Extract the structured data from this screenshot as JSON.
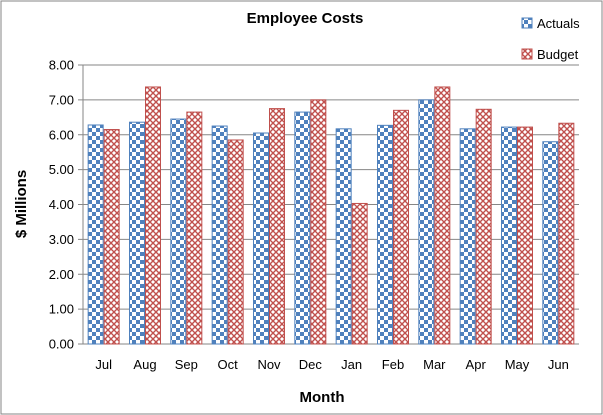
{
  "chart_data": {
    "type": "bar",
    "title": "Employee Costs",
    "xlabel": "Month",
    "ylabel": "$ Millions",
    "categories": [
      "Jul",
      "Aug",
      "Sep",
      "Oct",
      "Nov",
      "Dec",
      "Jan",
      "Feb",
      "Mar",
      "Apr",
      "May",
      "Jun"
    ],
    "series": [
      {
        "name": "Actuals",
        "values": [
          6.28,
          6.36,
          6.45,
          6.25,
          6.05,
          6.65,
          6.17,
          6.27,
          7.0,
          6.17,
          6.22,
          5.8
        ],
        "color": "#4f81bd"
      },
      {
        "name": "Budget",
        "values": [
          6.15,
          7.37,
          6.65,
          5.85,
          6.75,
          7.0,
          4.03,
          6.7,
          7.37,
          6.73,
          6.22,
          6.33
        ],
        "color": "#c0504d"
      }
    ],
    "ylim": [
      0,
      8
    ],
    "yticks": [
      "0.00",
      "1.00",
      "2.00",
      "3.00",
      "4.00",
      "5.00",
      "6.00",
      "7.00",
      "8.00"
    ],
    "grid": true,
    "legend_position": "top-right"
  }
}
